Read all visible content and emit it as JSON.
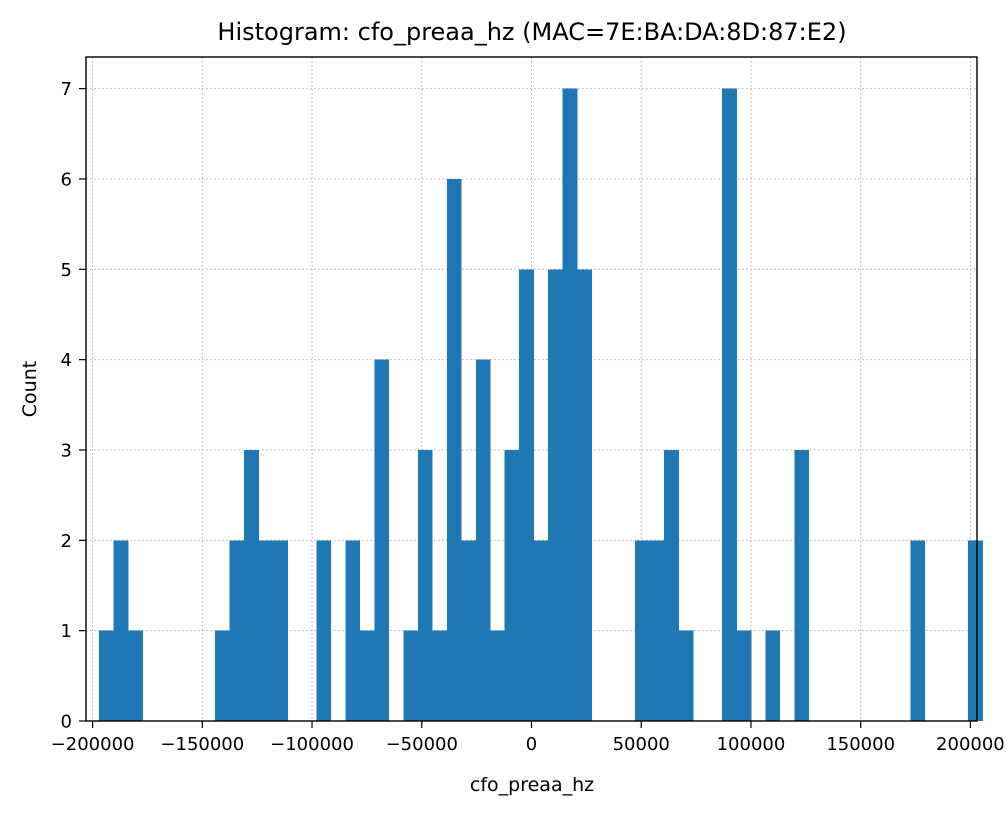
{
  "chart_data": {
    "type": "bar",
    "title": "Histogram: cfo_preaa_hz (MAC=7E:BA:DA:8D:87:E2)",
    "xlabel": "cfo_preaa_hz",
    "ylabel": "Count",
    "xlim": [
      -203000,
      203000
    ],
    "ylim": [
      0,
      7.35
    ],
    "grid": true,
    "color": "#1f77b4",
    "bin_start": -197000,
    "bin_width": 6600,
    "counts": [
      1,
      2,
      1,
      0,
      0,
      0,
      0,
      0,
      1,
      2,
      3,
      2,
      2,
      0,
      0,
      2,
      0,
      2,
      1,
      4,
      0,
      1,
      3,
      1,
      6,
      2,
      4,
      1,
      3,
      5,
      2,
      5,
      7,
      5,
      0,
      0,
      0,
      2,
      2,
      3,
      1,
      0,
      0,
      7,
      1,
      0,
      1,
      0,
      3,
      0,
      0,
      0,
      0,
      0,
      0,
      0,
      2,
      0,
      0,
      0,
      2
    ],
    "x_ticks": [
      -200000,
      -150000,
      -100000,
      -50000,
      0,
      50000,
      100000,
      150000,
      200000
    ],
    "x_tick_labels": [
      "−200000",
      "−150000",
      "−100000",
      "−50000",
      "0",
      "50000",
      "100000",
      "150000",
      "200000"
    ],
    "y_ticks": [
      0,
      1,
      2,
      3,
      4,
      5,
      6,
      7
    ],
    "y_tick_labels": [
      "0",
      "1",
      "2",
      "3",
      "4",
      "5",
      "6",
      "7"
    ]
  }
}
